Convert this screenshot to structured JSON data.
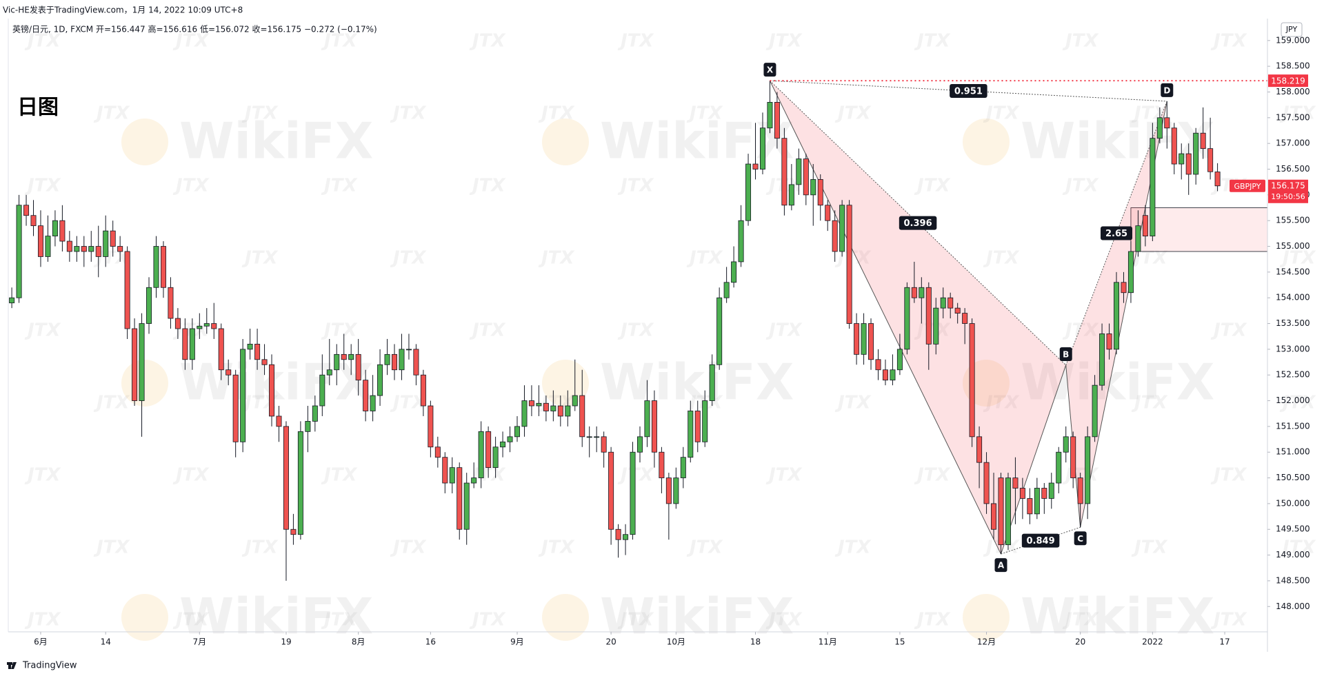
{
  "header": "Vic-HE发表于TradingView.com，1月 14, 2022 10:09 UTC+8",
  "footer": "TradingView",
  "chart_data": {
    "type": "candlestick",
    "title": "日图",
    "legend_text": "英镑/日元, 1D, FXCM  开=156.447  高=156.616  低=156.072  收=156.175  −0.272 (−0.17%)",
    "currency": "JPY",
    "symbol": "GBPJPY",
    "countdown": "19:50:56",
    "up_color": "#4caf50",
    "down_color": "#ef5350",
    "ylim": [
      147.508,
      159.426
    ],
    "yticks": [
      {
        "value": 148,
        "label": "148.000"
      },
      {
        "value": 148.5,
        "label": "148.500"
      },
      {
        "value": 149,
        "label": "149.000"
      },
      {
        "value": 149.5,
        "label": "149.500"
      },
      {
        "value": 150,
        "label": "150.000"
      },
      {
        "value": 150.5,
        "label": "150.500"
      },
      {
        "value": 151,
        "label": "151.000"
      },
      {
        "value": 151.5,
        "label": "151.500"
      },
      {
        "value": 152,
        "label": "152.000"
      },
      {
        "value": 152.5,
        "label": "152.500"
      },
      {
        "value": 153,
        "label": "153.000"
      },
      {
        "value": 153.5,
        "label": "153.500"
      },
      {
        "value": 154,
        "label": "154.000"
      },
      {
        "value": 154.5,
        "label": "154.500"
      },
      {
        "value": 155,
        "label": "155.000"
      },
      {
        "value": 155.5,
        "label": "155.500"
      },
      {
        "value": 156,
        "label": "156.000"
      },
      {
        "value": 156.5,
        "label": "156.500"
      },
      {
        "value": 157,
        "label": "157.000"
      },
      {
        "value": 157.5,
        "label": "157.500"
      },
      {
        "value": 158,
        "label": "158.000"
      },
      {
        "value": 158.5,
        "label": "158.500"
      },
      {
        "value": 159,
        "label": "159.000"
      }
    ],
    "categories": [
      null,
      null,
      null,
      null,
      "6月",
      null,
      null,
      null,
      null,
      null,
      null,
      null,
      null,
      "14",
      null,
      null,
      null,
      null,
      null,
      null,
      null,
      null,
      null,
      null,
      null,
      null,
      "7月",
      null,
      null,
      null,
      null,
      null,
      null,
      null,
      null,
      null,
      null,
      null,
      "19",
      null,
      null,
      null,
      null,
      null,
      null,
      null,
      null,
      null,
      "8月",
      null,
      null,
      null,
      null,
      null,
      null,
      null,
      null,
      null,
      "16",
      null,
      null,
      null,
      null,
      null,
      null,
      null,
      null,
      null,
      null,
      null,
      "9月",
      null,
      null,
      null,
      null,
      null,
      null,
      null,
      null,
      null,
      null,
      null,
      null,
      "20",
      null,
      null,
      null,
      null,
      null,
      null,
      null,
      null,
      "10月",
      null,
      null,
      null,
      null,
      null,
      null,
      null,
      null,
      null,
      null,
      "18",
      null,
      null,
      null,
      null,
      null,
      null,
      null,
      null,
      null,
      "11月",
      null,
      null,
      null,
      null,
      null,
      null,
      null,
      null,
      null,
      "15",
      null,
      null,
      null,
      null,
      null,
      null,
      null,
      null,
      null,
      null,
      null,
      "12月",
      null,
      null,
      null,
      null,
      null,
      null,
      null,
      null,
      null,
      null,
      null,
      null,
      "20",
      null,
      null,
      null,
      null,
      null,
      null,
      null,
      null,
      null,
      "2022",
      null,
      null,
      null,
      null,
      null,
      null,
      null,
      null,
      null,
      "17"
    ],
    "open": [
      153.9,
      154.0,
      155.8,
      155.6,
      155.4,
      154.8,
      155.2,
      155.5,
      155.1,
      154.9,
      155.0,
      154.9,
      155.0,
      154.8,
      155.3,
      155.0,
      154.9,
      153.4,
      152.0,
      153.5,
      154.2,
      155.0,
      154.2,
      153.6,
      153.4,
      152.8,
      153.4,
      153.45,
      153.5,
      153.4,
      152.6,
      152.5,
      151.2,
      153.0,
      153.1,
      152.8,
      152.7,
      151.7,
      151.5,
      149.5,
      149.4,
      151.4,
      151.6,
      151.9,
      152.5,
      152.6,
      152.9,
      152.8,
      152.9,
      152.4,
      151.8,
      152.1,
      152.7,
      152.9,
      152.6,
      153.0,
      153.0,
      152.5,
      151.9,
      151.1,
      150.9,
      150.4,
      150.7,
      149.5,
      150.4,
      150.5,
      151.4,
      150.7,
      151.1,
      151.2,
      151.3,
      151.5,
      152.0,
      151.9,
      151.95,
      151.8,
      151.9,
      151.7,
      151.9,
      152.1,
      151.3,
      151.3,
      151.3,
      151.0,
      149.5,
      149.3,
      149.4,
      151.0,
      151.3,
      152.0,
      151.0,
      150.5,
      150.0,
      150.5,
      150.9,
      151.8,
      151.2,
      152.0,
      152.7,
      154.0,
      154.3,
      154.7,
      155.5,
      156.6,
      156.5,
      157.3,
      157.8,
      157.1,
      155.8,
      156.2,
      156.7,
      156.0,
      156.3,
      155.8,
      155.5,
      154.9,
      155.8,
      153.5,
      152.9,
      153.5,
      152.8,
      152.6,
      152.4,
      152.6,
      153.0,
      154.2,
      154.0,
      154.2,
      153.1,
      153.8,
      154.0,
      153.8,
      153.7,
      153.5,
      151.3,
      150.8,
      150.0,
      150.5,
      149.2,
      150.5,
      150.3,
      150.1,
      149.8,
      150.3,
      150.1,
      150.4,
      151.0,
      151.3,
      150.5,
      150.0,
      151.3,
      152.3,
      153.3,
      153.0,
      154.3,
      154.1,
      154.9,
      155.6,
      155.2,
      157.1,
      157.5,
      157.3,
      156.6,
      156.8,
      156.4,
      157.2,
      156.9,
      156.447,
      null
    ],
    "high": [
      154.2,
      156.0,
      156.0,
      155.9,
      155.7,
      155.6,
      155.7,
      155.8,
      155.3,
      155.2,
      155.2,
      155.3,
      155.4,
      155.6,
      155.5,
      155.2,
      155.0,
      153.6,
      153.7,
      154.4,
      155.2,
      155.1,
      154.4,
      153.8,
      153.6,
      153.6,
      153.7,
      153.8,
      153.9,
      153.5,
      152.8,
      152.6,
      153.2,
      153.4,
      153.4,
      153.1,
      152.9,
      151.9,
      151.6,
      149.8,
      151.6,
      151.9,
      152.1,
      152.9,
      153.2,
      153.1,
      153.3,
      153.1,
      153.2,
      152.6,
      152.5,
      153.0,
      153.2,
      153.1,
      153.3,
      153.3,
      153.1,
      152.6,
      152.0,
      151.3,
      151.0,
      150.9,
      150.8,
      150.6,
      150.8,
      151.6,
      151.5,
      151.3,
      151.4,
      151.5,
      151.7,
      152.3,
      152.3,
      152.3,
      152.1,
      152.2,
      152.1,
      152.2,
      152.8,
      152.6,
      151.5,
      151.5,
      151.4,
      151.1,
      149.6,
      149.6,
      151.2,
      151.5,
      152.4,
      152.2,
      151.1,
      150.6,
      150.7,
      151.1,
      152.0,
      152.0,
      152.2,
      152.9,
      154.2,
      154.6,
      155.0,
      155.8,
      156.8,
      157.4,
      157.6,
      158.219,
      158.0,
      157.3,
      156.6,
      156.9,
      156.8,
      156.6,
      156.4,
      155.9,
      155.7,
      155.9,
      155.9,
      153.7,
      153.7,
      153.6,
      153.0,
      152.8,
      152.9,
      153.3,
      154.3,
      154.7,
      154.4,
      154.3,
      154.0,
      154.2,
      154.1,
      153.9,
      153.8,
      153.6,
      151.5,
      151.0,
      150.6,
      150.6,
      150.6,
      150.9,
      150.5,
      150.3,
      150.5,
      150.4,
      150.6,
      151.1,
      151.5,
      151.4,
      150.6,
      151.5,
      152.5,
      153.5,
      153.5,
      154.5,
      154.5,
      155.1,
      155.7,
      155.8,
      157.4,
      157.7,
      157.82,
      157.4,
      157.0,
      157.0,
      157.3,
      157.7,
      157.5,
      156.616,
      null
    ],
    "low": [
      153.8,
      153.9,
      155.4,
      155.2,
      154.6,
      154.7,
      155.0,
      154.9,
      154.7,
      154.7,
      154.6,
      154.7,
      154.4,
      154.6,
      154.8,
      154.7,
      153.2,
      151.9,
      151.3,
      153.3,
      154.0,
      154.0,
      153.4,
      153.2,
      152.6,
      152.6,
      153.2,
      153.3,
      153.2,
      152.4,
      152.3,
      150.9,
      151.0,
      152.8,
      152.6,
      152.5,
      151.5,
      151.2,
      148.5,
      149.2,
      149.3,
      151.0,
      151.4,
      151.7,
      152.3,
      152.3,
      152.6,
      152.5,
      152.1,
      151.6,
      151.6,
      151.9,
      152.5,
      152.4,
      152.4,
      152.8,
      152.3,
      151.7,
      150.9,
      150.7,
      150.2,
      150.2,
      149.3,
      149.2,
      150.3,
      150.3,
      150.5,
      150.5,
      150.9,
      151.0,
      151.2,
      151.3,
      151.7,
      151.7,
      151.6,
      151.6,
      151.5,
      151.5,
      151.8,
      151.1,
      150.9,
      151.0,
      150.7,
      149.2,
      148.95,
      149.0,
      149.3,
      150.8,
      151.1,
      150.7,
      150.2,
      149.3,
      149.9,
      150.3,
      150.8,
      151.0,
      151.1,
      151.9,
      152.6,
      153.9,
      154.2,
      154.6,
      155.4,
      156.3,
      156.4,
      157.2,
      156.9,
      155.6,
      155.7,
      156.0,
      155.8,
      155.4,
      155.5,
      155.3,
      154.7,
      154.8,
      153.4,
      152.7,
      152.7,
      152.6,
      152.4,
      152.3,
      152.3,
      152.5,
      152.9,
      153.9,
      153.5,
      152.6,
      152.9,
      153.6,
      153.6,
      153.5,
      153.1,
      151.1,
      150.3,
      149.8,
      149.3,
      149.02,
      149.1,
      149.6,
      149.7,
      149.6,
      149.7,
      149.8,
      149.9,
      150.2,
      150.8,
      150.3,
      149.54,
      149.7,
      151.2,
      152.2,
      152.8,
      152.9,
      153.9,
      153.9,
      154.8,
      155.0,
      155.1,
      157.0,
      156.9,
      156.4,
      156.3,
      156.0,
      156.2,
      156.7,
      156.3,
      156.072,
      null
    ],
    "close": [
      154.0,
      155.8,
      155.6,
      155.4,
      154.8,
      155.2,
      155.5,
      155.1,
      154.9,
      155.0,
      154.9,
      155.0,
      154.8,
      155.3,
      155.0,
      154.9,
      153.4,
      152.0,
      153.5,
      154.2,
      155.0,
      154.2,
      153.6,
      153.4,
      152.8,
      153.4,
      153.45,
      153.5,
      153.4,
      152.6,
      152.5,
      151.2,
      153.0,
      153.1,
      152.8,
      152.7,
      151.7,
      151.5,
      149.5,
      149.4,
      151.4,
      151.6,
      151.9,
      152.5,
      152.6,
      152.9,
      152.8,
      152.9,
      152.4,
      151.8,
      152.1,
      152.7,
      152.9,
      152.6,
      153.0,
      153.0,
      152.5,
      151.9,
      151.1,
      150.9,
      150.4,
      150.7,
      149.5,
      150.4,
      150.5,
      151.4,
      150.7,
      151.1,
      151.2,
      151.3,
      151.5,
      152.0,
      151.9,
      151.95,
      151.8,
      151.9,
      151.7,
      151.9,
      152.1,
      151.3,
      151.3,
      151.3,
      151.0,
      149.5,
      149.3,
      149.4,
      151.0,
      151.3,
      152.0,
      151.0,
      150.5,
      150.0,
      150.5,
      150.9,
      151.8,
      151.2,
      152.0,
      152.7,
      154.0,
      154.3,
      154.7,
      155.5,
      156.6,
      156.5,
      157.3,
      157.8,
      157.1,
      155.8,
      156.2,
      156.7,
      156.0,
      156.3,
      155.8,
      155.5,
      154.9,
      155.8,
      153.5,
      152.9,
      153.5,
      152.8,
      152.6,
      152.4,
      152.6,
      153.0,
      154.2,
      154.0,
      154.2,
      153.1,
      153.8,
      154.0,
      153.8,
      153.7,
      153.5,
      151.3,
      150.8,
      150.0,
      149.5,
      149.2,
      150.5,
      150.3,
      150.1,
      149.8,
      150.3,
      150.1,
      150.4,
      151.0,
      151.3,
      150.5,
      150.0,
      151.3,
      152.3,
      153.3,
      153.0,
      154.3,
      154.1,
      154.9,
      155.4,
      155.2,
      157.1,
      157.5,
      157.3,
      156.6,
      156.8,
      156.4,
      157.2,
      156.9,
      156.45,
      156.175,
      null
    ],
    "level": 158.219,
    "zone": {
      "start_index": 155,
      "top": 155.75,
      "bottom": 154.9
    },
    "pattern": {
      "points": [
        {
          "label": "X",
          "index": 105,
          "price": 158.219
        },
        {
          "label": "A",
          "index": 137,
          "price": 149.02
        },
        {
          "label": "B",
          "index": 146,
          "price": 152.69
        },
        {
          "label": "C",
          "index": 148,
          "price": 149.54
        },
        {
          "label": "D",
          "index": 160,
          "price": 157.82
        }
      ],
      "ratios": [
        0.951,
        0.396,
        0.849,
        2.65
      ]
    },
    "watermarks": [
      "WikiFX",
      "JTX"
    ]
  }
}
